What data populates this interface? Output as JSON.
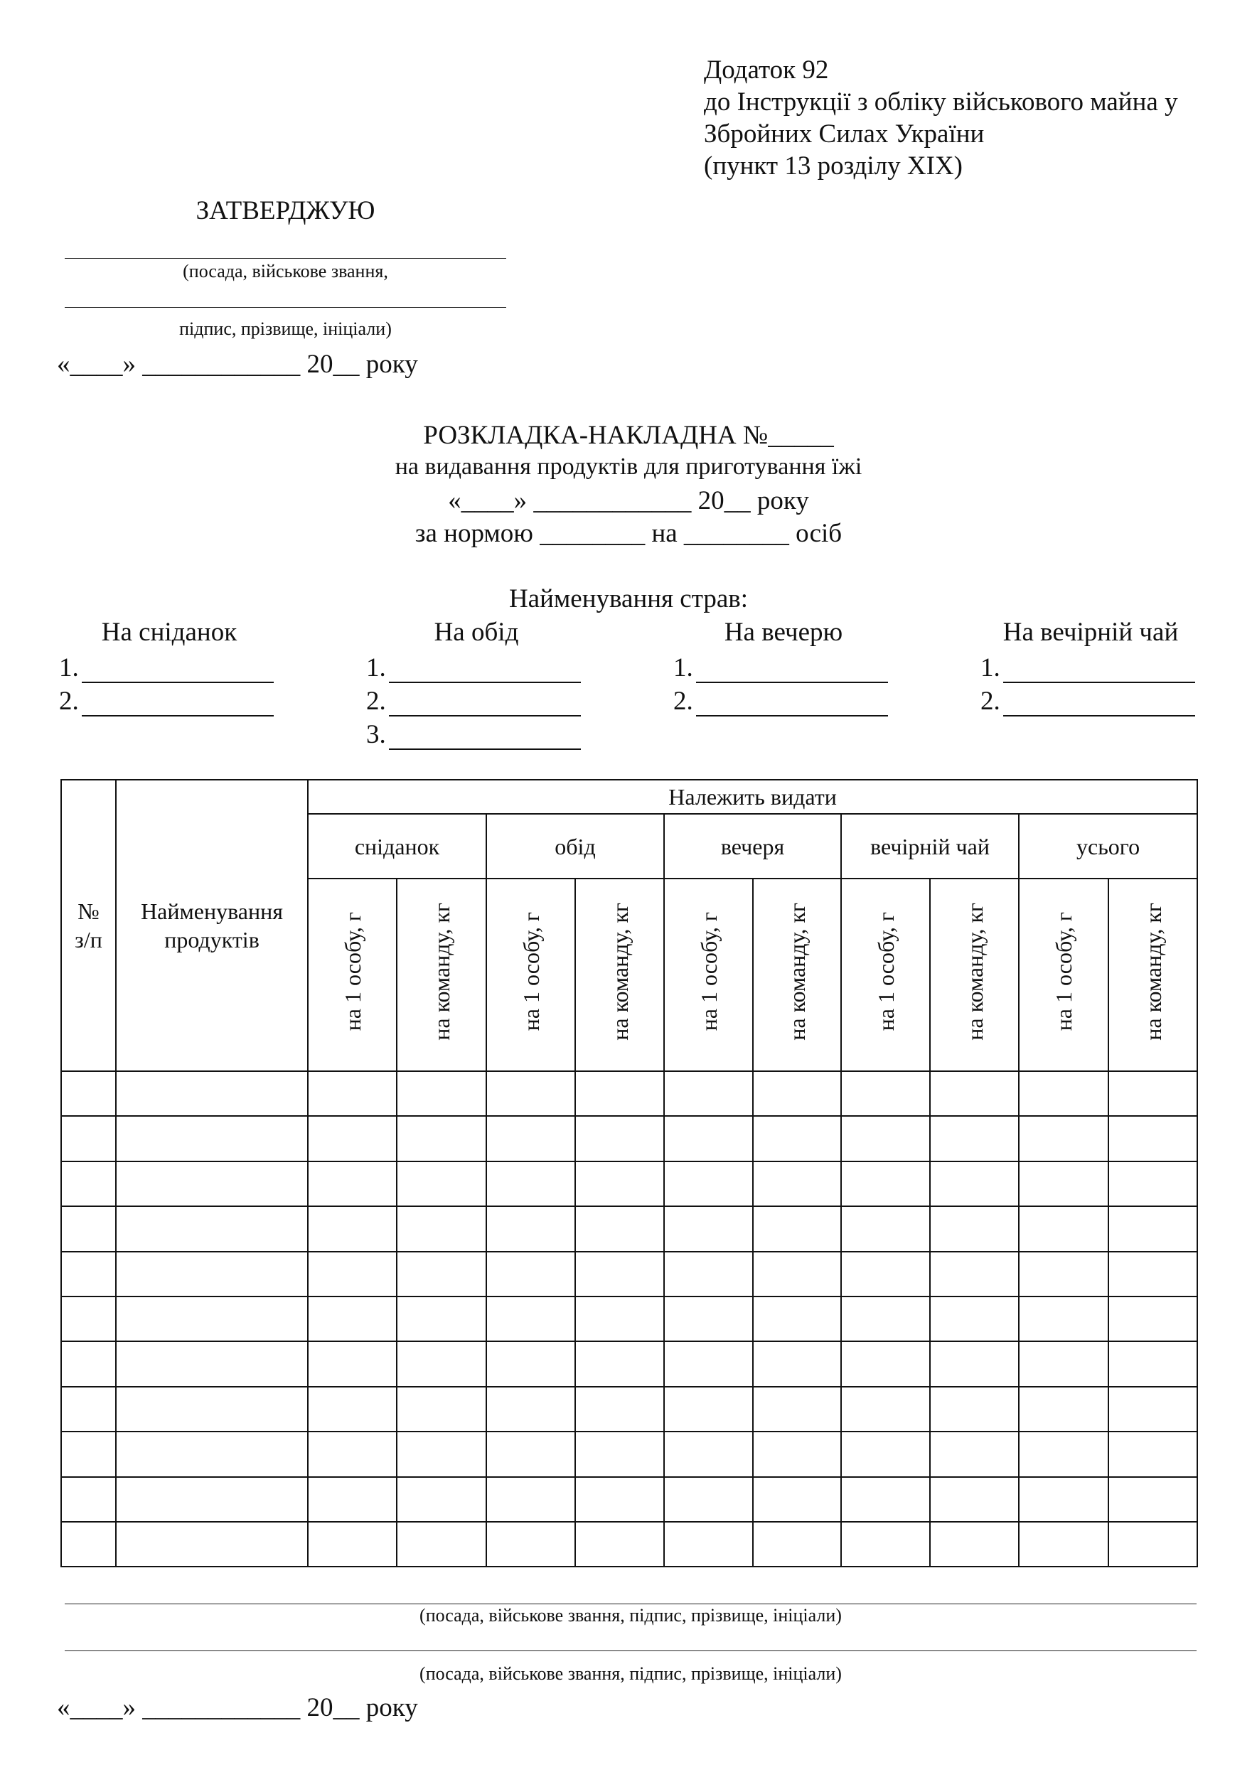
{
  "appendix": {
    "lines": [
      "Додаток 92",
      "до Інструкції з обліку військового майна у",
      "Збройних Силах України",
      "(пункт 13 розділу XIX)"
    ]
  },
  "approval": {
    "title": "ЗАТВЕРДЖУЮ",
    "caption1": "(посада, військове звання,",
    "caption2": "підпис, прізвище, ініціали)",
    "date": "«____» ____________ 20__ року"
  },
  "header": {
    "title": "РОЗКЛАДКА-НАКЛАДНА №_____",
    "subtitle": "на видавання продуктів для приготування їжі",
    "date": "«____» ____________ 20__ року",
    "norm": "за нормою ________ на ________ осіб"
  },
  "dishes": {
    "title": "Найменування страв:",
    "meals": [
      {
        "label": "На сніданок",
        "items": [
          "1.",
          "2."
        ]
      },
      {
        "label": "На обід",
        "items": [
          "1.",
          "2.",
          "3."
        ]
      },
      {
        "label": "На вечерю",
        "items": [
          "1.",
          "2."
        ]
      },
      {
        "label": "На вечірній чай",
        "items": [
          "1.",
          "2."
        ]
      }
    ]
  },
  "table": {
    "col_num": "№ з/п",
    "col_name": "Найменування продуктів",
    "group": "Належить видати",
    "meals": [
      "сніданок",
      "обід",
      "вечеря",
      "вечірній чай",
      "усього"
    ],
    "sub": [
      "на 1 особу, г",
      "на команду, кг"
    ],
    "empty_rows": 11
  },
  "footer": {
    "caption1": "(посада, військове звання, підпис, прізвище, ініціали)",
    "caption2": "(посада, військове звання, підпис, прізвище, ініціали)",
    "date": "«____» ____________ 20__ року"
  }
}
